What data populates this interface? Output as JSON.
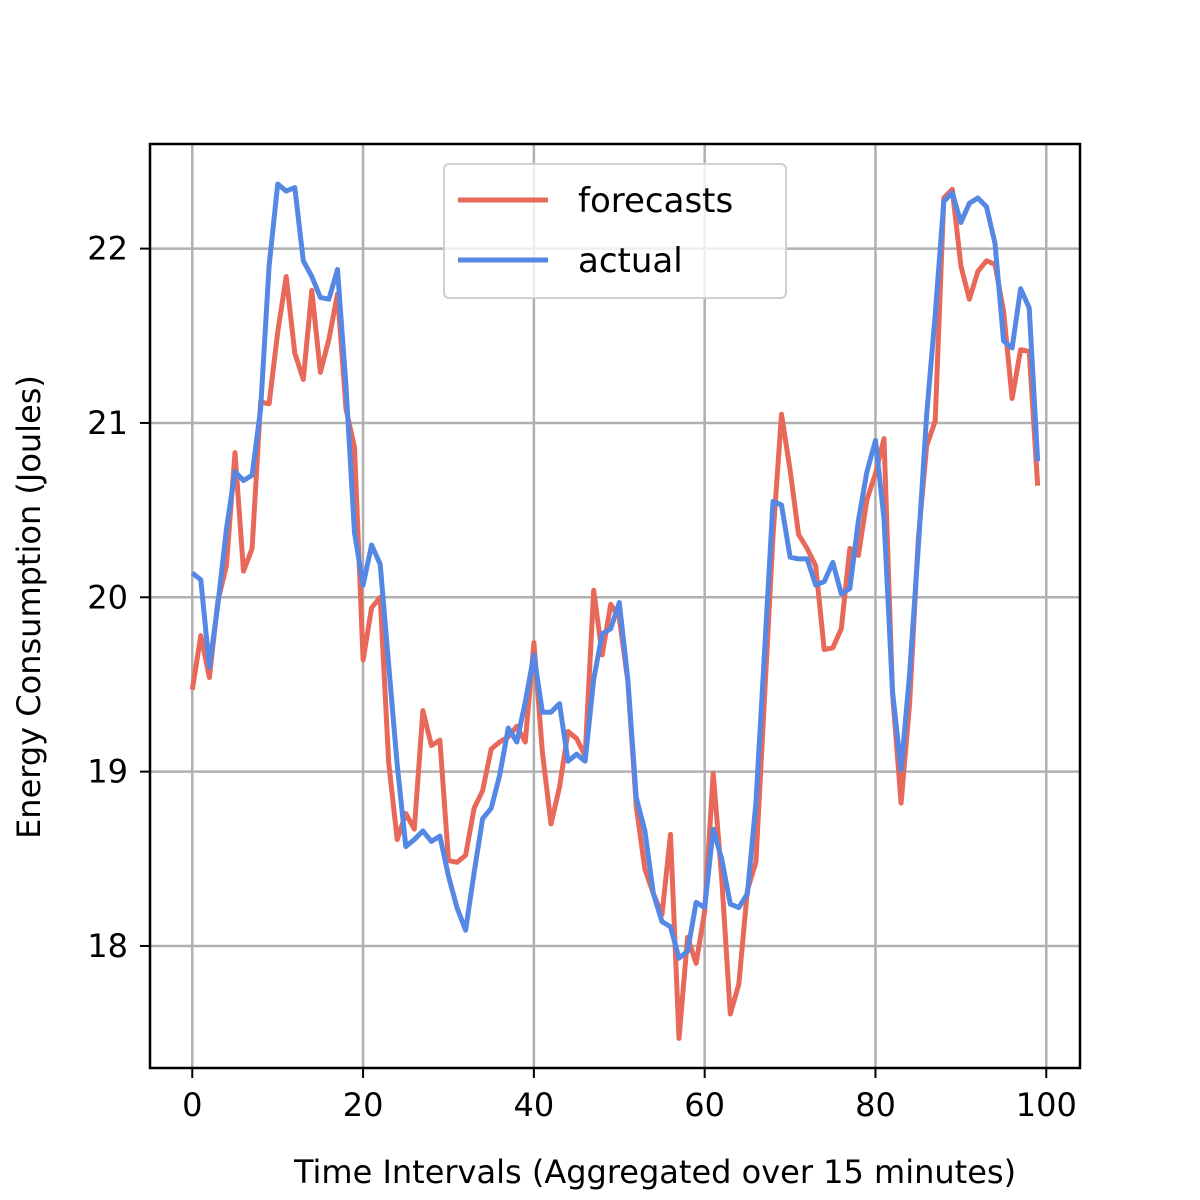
{
  "chart_data": {
    "type": "line",
    "title": "",
    "xlabel": "Time Intervals (Aggregated over 15 minutes)",
    "ylabel": "Energy Consumption (Joules)",
    "xlim": [
      -4.95,
      103.95
    ],
    "ylim": [
      17.3,
      22.6
    ],
    "xticks": [
      0,
      20,
      40,
      60,
      80,
      100
    ],
    "xtick_labels": [
      "0",
      "20",
      "40",
      "60",
      "80",
      "100"
    ],
    "yticks": [
      18,
      19,
      20,
      21,
      22
    ],
    "ytick_labels": [
      "18",
      "19",
      "20",
      "21",
      "22"
    ],
    "grid": true,
    "legend": {
      "position": "top-center",
      "entries": [
        "forecasts",
        "actual"
      ]
    },
    "x": [
      0,
      1,
      2,
      3,
      4,
      5,
      6,
      7,
      8,
      9,
      10,
      11,
      12,
      13,
      14,
      15,
      16,
      17,
      18,
      19,
      20,
      21,
      22,
      23,
      24,
      25,
      26,
      27,
      28,
      29,
      30,
      31,
      32,
      33,
      34,
      35,
      36,
      37,
      38,
      39,
      40,
      41,
      42,
      43,
      44,
      45,
      46,
      47,
      48,
      49,
      50,
      51,
      52,
      53,
      54,
      55,
      56,
      57,
      58,
      59,
      60,
      61,
      62,
      63,
      64,
      65,
      66,
      67,
      68,
      69,
      70,
      71,
      72,
      73,
      74,
      75,
      76,
      77,
      78,
      79,
      80,
      81,
      82,
      83,
      84,
      85,
      86,
      87,
      88,
      89,
      90,
      91,
      92,
      93,
      94,
      95,
      96,
      97,
      98,
      99
    ],
    "series": [
      {
        "name": "forecasts",
        "color": "#e8695a",
        "values": [
          19.47,
          19.78,
          19.54,
          19.98,
          20.18,
          20.83,
          20.15,
          20.28,
          21.12,
          21.11,
          21.52,
          21.84,
          21.4,
          21.25,
          21.76,
          21.29,
          21.48,
          21.74,
          21.08,
          20.86,
          19.64,
          19.94,
          20.0,
          19.05,
          18.61,
          18.76,
          18.67,
          19.35,
          19.15,
          19.18,
          18.49,
          18.48,
          18.52,
          18.79,
          18.89,
          19.13,
          19.17,
          19.2,
          19.26,
          19.17,
          19.74,
          19.11,
          18.7,
          18.91,
          19.23,
          19.19,
          19.09,
          20.04,
          19.67,
          19.96,
          19.88,
          19.52,
          18.8,
          18.44,
          18.3,
          18.18,
          18.64,
          17.47,
          18.05,
          17.9,
          18.2,
          18.99,
          18.39,
          17.61,
          17.78,
          18.32,
          18.48,
          19.41,
          20.35,
          21.05,
          20.73,
          20.36,
          20.28,
          20.18,
          19.7,
          19.71,
          19.82,
          20.28,
          20.24,
          20.56,
          20.71,
          20.91,
          19.45,
          18.82,
          19.39,
          20.33,
          20.87,
          21.01,
          22.29,
          22.34,
          21.9,
          21.71,
          21.87,
          21.93,
          21.91,
          21.64,
          21.14,
          21.42,
          21.41,
          20.64
        ]
      },
      {
        "name": "actual",
        "color": "#5588e4",
        "values": [
          20.14,
          20.1,
          19.6,
          19.96,
          20.39,
          20.72,
          20.67,
          20.7,
          21.08,
          21.9,
          22.37,
          22.33,
          22.35,
          21.93,
          21.84,
          21.72,
          21.71,
          21.88,
          21.21,
          20.37,
          20.07,
          20.3,
          20.19,
          19.61,
          19.04,
          18.57,
          18.61,
          18.66,
          18.6,
          18.63,
          18.4,
          18.22,
          18.09,
          18.42,
          18.73,
          18.79,
          18.98,
          19.25,
          19.17,
          19.4,
          19.67,
          19.34,
          19.34,
          19.39,
          19.06,
          19.1,
          19.06,
          19.53,
          19.79,
          19.82,
          19.97,
          19.53,
          18.85,
          18.66,
          18.3,
          18.14,
          18.11,
          17.93,
          17.97,
          18.25,
          18.22,
          18.67,
          18.5,
          18.24,
          18.22,
          18.3,
          18.82,
          19.67,
          20.55,
          20.53,
          20.23,
          20.22,
          20.22,
          20.07,
          20.09,
          20.2,
          20.02,
          20.05,
          20.44,
          20.72,
          20.9,
          20.45,
          19.46,
          19.01,
          19.56,
          20.28,
          21.05,
          21.62,
          22.27,
          22.32,
          22.15,
          22.26,
          22.29,
          22.24,
          22.03,
          21.47,
          21.43,
          21.77,
          21.66,
          20.78
        ]
      }
    ]
  }
}
